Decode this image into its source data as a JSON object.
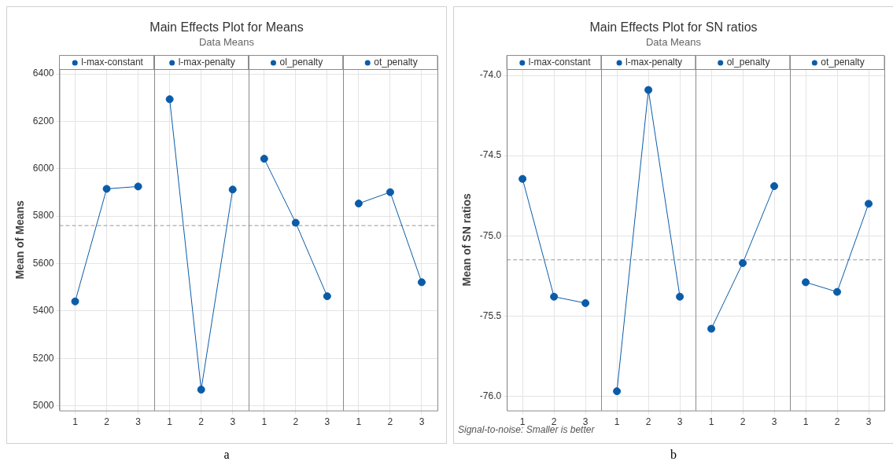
{
  "chart_data": [
    {
      "type": "line",
      "title": "Main Effects Plot for Means",
      "subtitle": "Data Means",
      "ylabel": "Mean of Means",
      "categories": [
        "1",
        "2",
        "3",
        "1",
        "2",
        "3",
        "1",
        "2",
        "3",
        "1",
        "2",
        "3"
      ],
      "series": [
        {
          "name": "l-max-constant",
          "color": "#0b5ca8",
          "values": [
            5440,
            5915,
            5925,
            null,
            null,
            null,
            null,
            null,
            null,
            null,
            null,
            null
          ]
        },
        {
          "name": "l-max-penalty",
          "color": "#0b5ca8",
          "values": [
            null,
            null,
            null,
            6293,
            5068,
            5912,
            null,
            null,
            null,
            null,
            null,
            null
          ]
        },
        {
          "name": "ol_penalty",
          "color": "#0b5ca8",
          "values": [
            null,
            null,
            null,
            null,
            null,
            null,
            6042,
            5772,
            5462,
            null,
            null,
            null
          ]
        },
        {
          "name": "ot_penalty",
          "color": "#0b5ca8",
          "values": [
            null,
            null,
            null,
            null,
            null,
            null,
            null,
            null,
            null,
            5853,
            5901,
            5521
          ]
        }
      ],
      "ylim": [
        4980,
        6420
      ],
      "yticks": [
        5000,
        5200,
        5400,
        5600,
        5800,
        6000,
        6200,
        6400
      ],
      "grid": true,
      "legend": "top",
      "marker": "circle",
      "ref_lines": [
        {
          "axis": "y",
          "value": 5760,
          "line_style": "dashed",
          "color": "#999999"
        }
      ],
      "annotations": [
        "a"
      ]
    },
    {
      "type": "line",
      "title": "Main Effects Plot for SN ratios",
      "subtitle": "Data Means",
      "ylabel": "Mean of SN ratios",
      "categories": [
        "1",
        "2",
        "3",
        "1",
        "2",
        "3",
        "1",
        "2",
        "3",
        "1",
        "2",
        "3"
      ],
      "series": [
        {
          "name": "l-max-constant",
          "color": "#0b5ca8",
          "values": [
            -74.645,
            -75.38,
            -75.42,
            null,
            null,
            null,
            null,
            null,
            null,
            null,
            null,
            null
          ]
        },
        {
          "name": "l-max-penalty",
          "color": "#0b5ca8",
          "values": [
            null,
            null,
            null,
            -75.97,
            -74.09,
            -75.38,
            null,
            null,
            null,
            null,
            null,
            null
          ]
        },
        {
          "name": "ol_penalty",
          "color": "#0b5ca8",
          "values": [
            null,
            null,
            null,
            null,
            null,
            null,
            -75.58,
            -75.17,
            -74.69,
            null,
            null,
            null
          ]
        },
        {
          "name": "ot_penalty",
          "color": "#0b5ca8",
          "values": [
            null,
            null,
            null,
            null,
            null,
            null,
            null,
            null,
            null,
            -75.29,
            -75.35,
            -74.8
          ]
        }
      ],
      "ylim": [
        -76.09,
        -73.96
      ],
      "yticks": [
        {
          "value": -76,
          "label": "-76.0"
        },
        {
          "value": -75.5,
          "label": "-75.5"
        },
        {
          "value": -75,
          "label": "-75.0"
        },
        {
          "value": -74.5,
          "label": "-74.5"
        },
        {
          "value": -74,
          "label": "-74.0"
        }
      ],
      "grid": true,
      "legend": "top",
      "marker": "circle",
      "ref_lines": [
        {
          "axis": "y",
          "value": -75.15,
          "line_style": "dashed",
          "color": "#999999"
        }
      ],
      "annotations": [
        "Signal-to-noise: Smaller is better",
        "b"
      ]
    }
  ]
}
